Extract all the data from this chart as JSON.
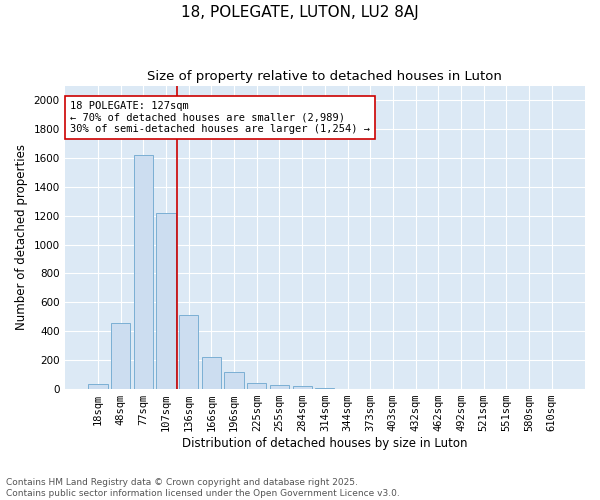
{
  "title_line1": "18, POLEGATE, LUTON, LU2 8AJ",
  "title_line2": "Size of property relative to detached houses in Luton",
  "xlabel": "Distribution of detached houses by size in Luton",
  "ylabel": "Number of detached properties",
  "categories": [
    "18sqm",
    "48sqm",
    "77sqm",
    "107sqm",
    "136sqm",
    "166sqm",
    "196sqm",
    "225sqm",
    "255sqm",
    "284sqm",
    "314sqm",
    "344sqm",
    "373sqm",
    "403sqm",
    "432sqm",
    "462sqm",
    "492sqm",
    "521sqm",
    "551sqm",
    "580sqm",
    "610sqm"
  ],
  "values": [
    35,
    460,
    1620,
    1215,
    510,
    220,
    115,
    45,
    25,
    20,
    8,
    2,
    0,
    0,
    0,
    0,
    0,
    0,
    0,
    0,
    0
  ],
  "bar_color": "#ccddf0",
  "bar_edge_color": "#7bafd4",
  "vline_x_index": 3.5,
  "vline_color": "#cc0000",
  "annotation_text": "18 POLEGATE: 127sqm\n← 70% of detached houses are smaller (2,989)\n30% of semi-detached houses are larger (1,254) →",
  "annotation_box_color": "white",
  "annotation_box_edge": "#cc0000",
  "ylim": [
    0,
    2100
  ],
  "yticks": [
    0,
    200,
    400,
    600,
    800,
    1000,
    1200,
    1400,
    1600,
    1800,
    2000
  ],
  "fig_bg_color": "#ffffff",
  "plot_bg_color": "#dce9f5",
  "grid_color": "#ffffff",
  "footer": "Contains HM Land Registry data © Crown copyright and database right 2025.\nContains public sector information licensed under the Open Government Licence v3.0.",
  "title_fontsize": 11,
  "subtitle_fontsize": 9.5,
  "axis_label_fontsize": 8.5,
  "tick_fontsize": 7.5,
  "annotation_fontsize": 7.5,
  "footer_fontsize": 6.5
}
